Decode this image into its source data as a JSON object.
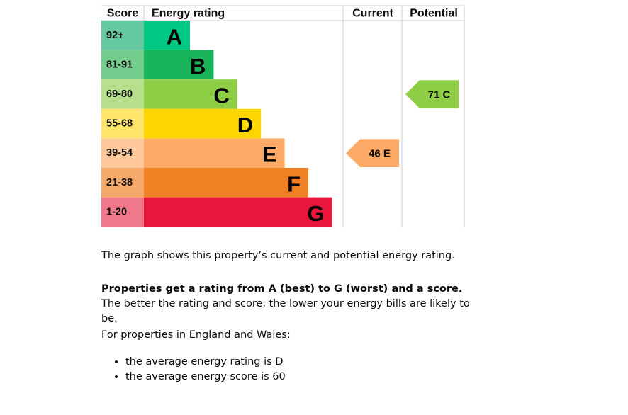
{
  "chart_data": {
    "type": "bar",
    "headers": {
      "score": "Score",
      "rating": "Energy rating",
      "current": "Current",
      "potential": "Potential"
    },
    "bands": [
      {
        "letter": "A",
        "range": "92+",
        "color": "#00c781",
        "score_color": "#65c8a0"
      },
      {
        "letter": "B",
        "range": "81-91",
        "color": "#19b459",
        "score_color": "#74cc8d"
      },
      {
        "letter": "C",
        "range": "69-80",
        "color": "#8dce46",
        "score_color": "#b6df8e"
      },
      {
        "letter": "D",
        "range": "55-68",
        "color": "#ffd500",
        "score_color": "#ffe56c"
      },
      {
        "letter": "E",
        "range": "39-54",
        "color": "#fcaa65",
        "score_color": "#fdc79a"
      },
      {
        "letter": "F",
        "range": "21-38",
        "color": "#ef8023",
        "score_color": "#f4a96b"
      },
      {
        "letter": "G",
        "range": "1-20",
        "color": "#e9153b",
        "score_color": "#f0788b"
      }
    ],
    "current": {
      "score": 46,
      "letter": "E",
      "label": "46  E"
    },
    "potential": {
      "score": 71,
      "letter": "C",
      "label": "71  C"
    }
  },
  "text": {
    "p1": "The graph shows this property’s current and potential energy rating.",
    "p2_bold": "Properties get a rating from A (best) to G (worst) and a score.",
    "p2_rest": " The better the rating and score, the lower your energy bills are likely to be.",
    "p3": "For properties in England and Wales:",
    "bullets": [
      "the average energy rating is D",
      "the average energy score is 60"
    ]
  }
}
